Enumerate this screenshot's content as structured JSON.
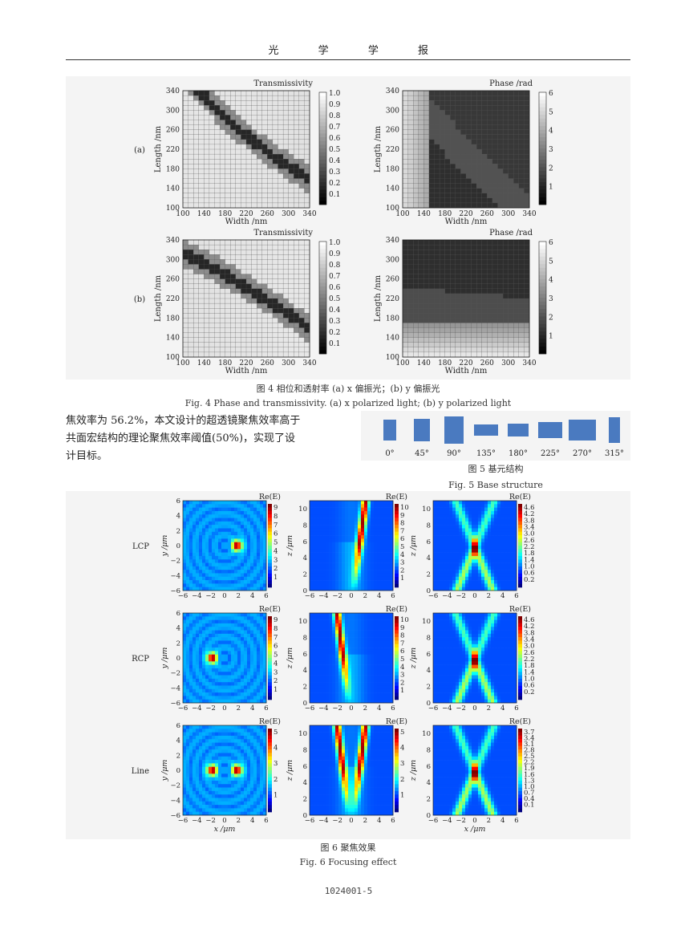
{
  "header": {
    "chars": [
      "光",
      "学",
      "学",
      "报"
    ]
  },
  "fig4": {
    "caption_cn": "图 4 相位和透射率 (a) x 偏振光；(b) y 偏振光",
    "caption_en": "Fig. 4 Phase and transmissivity. (a) x polarized light; (b) y polarized light",
    "row_labels": [
      "(a)",
      "(b)"
    ],
    "trans_title": "Transmissivity",
    "phase_title": "Phase /rad",
    "xlabel": "Width /nm",
    "ylabel": "Length /nm",
    "x_ticks": [
      "100",
      "140",
      "180",
      "220",
      "260",
      "300",
      "340"
    ],
    "y_ticks": [
      "340",
      "300",
      "260",
      "220",
      "180",
      "140",
      "100"
    ],
    "trans_cbar": [
      "1.0",
      "0.9",
      "0.8",
      "0.7",
      "0.6",
      "0.5",
      "0.4",
      "0.3",
      "0.2",
      "0.1"
    ],
    "phase_cbar": [
      "6",
      "5",
      "4",
      "3",
      "2",
      "1"
    ]
  },
  "body": {
    "line1": "焦效率为 56.2%，本文设计的超透镜聚焦效率高于",
    "line2": "共面宏结构的理论聚焦效率阈值(50%)，实现了设",
    "line3": "计目标。"
  },
  "fig5": {
    "angles": [
      "0°",
      "45°",
      "90°",
      "135°",
      "180°",
      "225°",
      "270°",
      "315°"
    ],
    "caption_cn": "图 5 基元结构",
    "caption_en": "Fig. 5 Base structure",
    "bar_color": "#4a7ac0"
  },
  "fig6": {
    "row_labels": [
      "LCP",
      "RCP",
      "Line"
    ],
    "panel_title": "Re(E)",
    "xy_ticks": [
      "−6",
      "−4",
      "−2",
      "0",
      "2",
      "4",
      "6"
    ],
    "xy_yticks": [
      "6",
      "4",
      "2",
      "0",
      "−2",
      "−4",
      "−6"
    ],
    "xz_yticks": [
      "10",
      "8",
      "6",
      "4",
      "2",
      "0"
    ],
    "ylabel_xy": "y /μm",
    "ylabel_xz": "z /μm",
    "xlabel": "x /μm",
    "cbars": [
      [
        [
          "9",
          "8",
          "7",
          "6",
          "5",
          "4",
          "3",
          "2",
          "1"
        ],
        [
          "10",
          "9",
          "8",
          "7",
          "6",
          "5",
          "4",
          "3",
          "2",
          "1"
        ],
        [
          "4.6",
          "4.2",
          "3.8",
          "3.4",
          "3.0",
          "2.6",
          "2.2",
          "1.8",
          "1.4",
          "1.0",
          "0.6",
          "0.2"
        ]
      ],
      [
        [
          "9",
          "8",
          "7",
          "6",
          "5",
          "4",
          "3",
          "2",
          "1"
        ],
        [
          "10",
          "9",
          "8",
          "7",
          "6",
          "5",
          "4",
          "3",
          "2",
          "1"
        ],
        [
          "4.6",
          "4.2",
          "3.8",
          "3.4",
          "3.0",
          "2.6",
          "2.2",
          "1.8",
          "1.4",
          "1.0",
          "0.6",
          "0.2"
        ]
      ],
      [
        [
          "5",
          "4",
          "3",
          "2",
          "1"
        ],
        [
          "5",
          "4",
          "3",
          "2",
          "1"
        ],
        [
          "3.7",
          "3.4",
          "3.1",
          "2.8",
          "2.5",
          "2.2",
          "1.9",
          "1.6",
          "1.3",
          "1.0",
          "0.7",
          "0.4",
          "0.1"
        ]
      ]
    ],
    "caption_cn": "图 6 聚焦效果",
    "caption_en": "Fig. 6 Focusing effect"
  },
  "page_number": "1024001-5"
}
